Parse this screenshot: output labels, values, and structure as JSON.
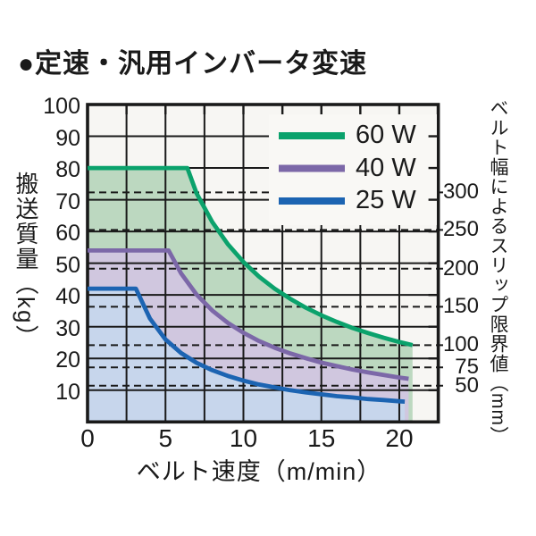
{
  "page": {
    "title": "●定速・汎用インバータ変速"
  },
  "colors": {
    "page_bg": "#ffffff",
    "plot_bg": "#f7f6f3",
    "legend_bg": "#f9f8f5",
    "frame": "#1a1a1a",
    "grid": "#1a1a1a",
    "dashed_line": "#1a1a1a",
    "text": "#1a1a1a",
    "series_60w_line": "#0ba26c",
    "series_60w_fill": "#bcd8c0",
    "series_40w_line": "#7c68a8",
    "series_40w_fill": "#d0c7df",
    "series_25w_line": "#1c64b2",
    "series_25w_fill": "#c7d6ec"
  },
  "chart_data": {
    "type": "line",
    "title": "●定速・汎用インバータ変速",
    "xlabel": "ベルト速度（m/min）",
    "ylabel_left": "搬送質量（kg）",
    "ylabel_right": "ベルト幅によるスリップ限界値（mm）",
    "xlim": [
      0,
      22.5
    ],
    "ylim": [
      0,
      100
    ],
    "x_ticks": [
      0,
      5,
      10,
      15,
      20
    ],
    "x_grid_step": 2.5,
    "y_ticks": [
      10,
      20,
      30,
      40,
      50,
      60,
      70,
      80,
      90,
      100
    ],
    "grid": true,
    "legend_position": "top-right",
    "series": [
      {
        "name": "60 W",
        "flat_load_kg": 80,
        "knee_speed": 6.4,
        "end_speed": 20.85,
        "points": [
          [
            0,
            80
          ],
          [
            6.4,
            80
          ],
          [
            7,
            72
          ],
          [
            8,
            63
          ],
          [
            9,
            56
          ],
          [
            10,
            50.4
          ],
          [
            11,
            45.8
          ],
          [
            12,
            42
          ],
          [
            13,
            38.8
          ],
          [
            14,
            36
          ],
          [
            15,
            33.6
          ],
          [
            16,
            31.5
          ],
          [
            17,
            29.6
          ],
          [
            18,
            28
          ],
          [
            19,
            26.5
          ],
          [
            20,
            25.2
          ],
          [
            20.85,
            24.2
          ]
        ]
      },
      {
        "name": "40 W",
        "flat_load_kg": 54,
        "knee_speed": 5.2,
        "end_speed": 20.6,
        "points": [
          [
            0,
            54
          ],
          [
            5.2,
            54
          ],
          [
            6,
            46.8
          ],
          [
            7,
            40.1
          ],
          [
            8,
            35.1
          ],
          [
            9,
            31.2
          ],
          [
            10,
            28.1
          ],
          [
            11,
            25.5
          ],
          [
            12,
            23.4
          ],
          [
            13,
            21.6
          ],
          [
            14,
            20.1
          ],
          [
            15,
            18.7
          ],
          [
            16,
            17.6
          ],
          [
            17,
            16.5
          ],
          [
            18,
            15.6
          ],
          [
            19,
            14.8
          ],
          [
            20,
            14
          ],
          [
            20.6,
            13.6
          ]
        ]
      },
      {
        "name": "25 W",
        "flat_load_kg": 42,
        "knee_speed": 3.1,
        "end_speed": 20.35,
        "points": [
          [
            0,
            42
          ],
          [
            3.1,
            42
          ],
          [
            4,
            32.6
          ],
          [
            5,
            26
          ],
          [
            6,
            21.7
          ],
          [
            7,
            18.6
          ],
          [
            8,
            16.3
          ],
          [
            9,
            14.5
          ],
          [
            10,
            13
          ],
          [
            11,
            11.8
          ],
          [
            12,
            10.9
          ],
          [
            13,
            10
          ],
          [
            14,
            9.3
          ],
          [
            15,
            8.7
          ],
          [
            16,
            8.1
          ],
          [
            17,
            7.7
          ],
          [
            18,
            7.2
          ],
          [
            19,
            6.9
          ],
          [
            20,
            6.5
          ],
          [
            20.35,
            6.4
          ]
        ]
      }
    ],
    "slip_limit_lines": [
      {
        "belt_width_mm": "300",
        "load_kg": 72.3
      },
      {
        "belt_width_mm": "250",
        "load_kg": 60.5
      },
      {
        "belt_width_mm": "200",
        "load_kg": 48.3
      },
      {
        "belt_width_mm": "150",
        "load_kg": 36.3
      },
      {
        "belt_width_mm": "100",
        "load_kg": 24.2
      },
      {
        "belt_width_mm": "75",
        "load_kg": 17.2
      },
      {
        "belt_width_mm": "50",
        "load_kg": 11.4
      }
    ]
  }
}
